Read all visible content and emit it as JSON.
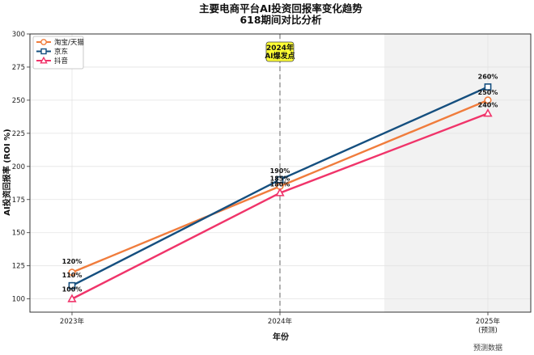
{
  "chart_data": {
    "type": "line",
    "title": "主要电商平台AI投资回报率变化趋势",
    "subtitle": "618期间对比分析",
    "xlabel": "年份",
    "ylabel": "AI投资回报率 (ROI %)",
    "categories": [
      "2023年",
      "2024年",
      "2025年"
    ],
    "category_sublabels": [
      "",
      "",
      "(预测)"
    ],
    "ylim": [
      90,
      300
    ],
    "yticks": [
      100,
      125,
      150,
      175,
      200,
      225,
      250,
      275,
      300
    ],
    "grid": true,
    "legend_position": "top-left",
    "series": [
      {
        "name": "淘宝/天猫",
        "values": [
          120,
          185,
          250
        ],
        "labels": [
          "120%",
          "185%",
          "250%"
        ],
        "color": "#F07C3C",
        "marker": "circle"
      },
      {
        "name": "京东",
        "values": [
          110,
          190,
          260
        ],
        "labels": [
          "110%",
          "190%",
          "260%"
        ],
        "color": "#154F7F",
        "marker": "square"
      },
      {
        "name": "抖音",
        "values": [
          100,
          180,
          240
        ],
        "labels": [
          "100%",
          "180%",
          "240%"
        ],
        "color": "#F0346A",
        "marker": "triangle"
      }
    ],
    "annotation": {
      "text_line1": "2024年",
      "text_line2": "AI爆发点",
      "at_category": "2024年",
      "box_color": "#FFFF33"
    },
    "forecast_note": "预测数据",
    "forecast_region_color": "#F2F2F2"
  }
}
